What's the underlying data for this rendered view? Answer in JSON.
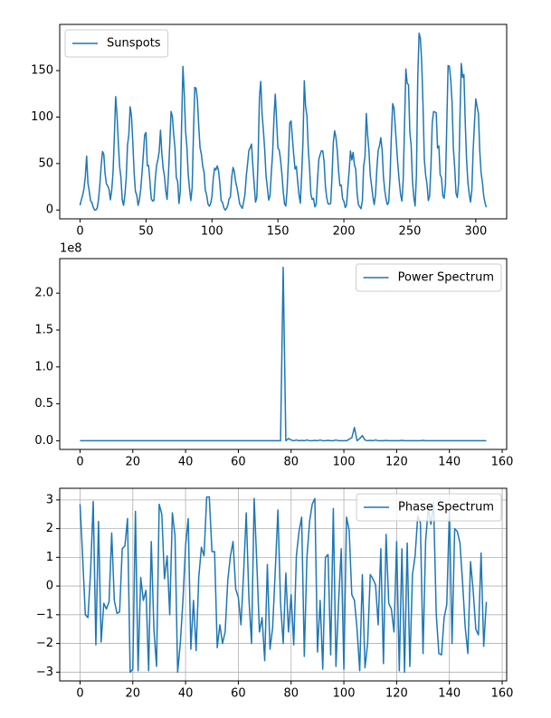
{
  "chart_data": [
    {
      "type": "line",
      "legend": "upper left",
      "grid": false,
      "series": [
        {
          "name": "Sunspots",
          "color": "#1f77b4",
          "values": [
            5,
            11,
            16,
            23,
            36,
            58,
            29,
            20,
            10,
            8,
            3,
            0,
            0,
            2,
            11,
            27,
            47,
            63,
            60,
            39,
            28,
            26,
            22,
            11,
            21,
            40,
            78,
            122,
            103,
            73,
            47,
            35,
            11,
            5,
            16,
            34,
            70,
            81,
            111,
            101,
            73,
            40,
            20,
            16,
            5,
            11,
            22,
            40,
            60,
            80.9,
            83.4,
            47.7,
            47.8,
            30.7,
            12.2,
            9.6,
            10.2,
            32.4,
            47.6,
            54,
            62.9,
            85.9,
            61.2,
            45.1,
            36.4,
            20.9,
            11.4,
            37.8,
            69.8,
            106.1,
            100.8,
            81.6,
            66.5,
            34.8,
            30.6,
            7,
            19.8,
            92.5,
            154.4,
            125.9,
            84.8,
            68.1,
            38.5,
            22.8,
            10.2,
            24.1,
            82.9,
            132,
            130.9,
            118.1,
            89.9,
            66.6,
            60,
            46.9,
            41,
            21.3,
            16,
            6.4,
            4.1,
            6.8,
            14.5,
            34,
            45,
            43.1,
            47.5,
            42.2,
            28.1,
            10.1,
            8.1,
            2.5,
            0,
            1.4,
            5,
            12.2,
            13.9,
            35.4,
            45.8,
            41.1,
            30.1,
            23.9,
            15.6,
            6.6,
            4,
            1.8,
            8.5,
            16.6,
            36.3,
            49.6,
            64.2,
            67,
            70.9,
            47.8,
            27.5,
            8.5,
            13.2,
            56.9,
            121.5,
            138.3,
            103.2,
            85.7,
            64.6,
            36.7,
            24.2,
            10.7,
            15,
            40.1,
            61.5,
            98.5,
            124.7,
            96.3,
            66.6,
            64.5,
            54.1,
            39,
            20.6,
            6.7,
            4.3,
            22.7,
            54.8,
            93.8,
            95.8,
            77.2,
            59.1,
            44,
            47,
            30.5,
            16.3,
            7.3,
            37.6,
            74,
            139,
            111.2,
            101.6,
            66.2,
            44.7,
            17,
            11.3,
            12.4,
            3.4,
            6,
            32.3,
            54.3,
            59.7,
            63.7,
            63.5,
            52.2,
            25.4,
            13.1,
            6.8,
            6.3,
            7.1,
            35.6,
            73,
            85.1,
            78,
            64,
            41.8,
            26.2,
            26.7,
            12.1,
            9.5,
            2.7,
            5,
            24.4,
            42,
            63.5,
            53.8,
            62,
            48.5,
            43.9,
            18.6,
            5.7,
            3.6,
            1.4,
            9.6,
            47.4,
            57.1,
            103.9,
            80.6,
            63.6,
            37.6,
            26.1,
            14.2,
            5.8,
            16.7,
            44.3,
            63.9,
            69,
            77.8,
            64.9,
            35.7,
            21.2,
            11.1,
            5.7,
            8.7,
            36.1,
            79.7,
            114.4,
            109.6,
            88.8,
            67.8,
            47.5,
            30.6,
            16.3,
            9.6,
            33.2,
            92.6,
            151.6,
            136.3,
            134.7,
            83.9,
            69.4,
            31.5,
            13.9,
            4.4,
            38,
            141.7,
            190.2,
            184.8,
            159,
            112.3,
            53.9,
            37.6,
            27.9,
            10.2,
            15.1,
            47,
            93.8,
            105.9,
            105.5,
            104.5,
            66.6,
            68.9,
            38,
            34.5,
            15.5,
            12.6,
            27.5,
            92.5,
            155.4,
            154.6,
            140.4,
            115.9,
            66.6,
            45.9,
            17.9,
            13.4,
            29.4,
            100.2,
            157.6,
            142.6,
            145.7,
            94.3,
            54.6,
            29.9,
            17.5,
            8.6,
            21.5,
            64.3,
            93.3,
            119.6,
            111,
            104,
            63.7,
            40.4,
            29.8,
            15.2,
            7.5,
            2.9
          ]
        }
      ],
      "xlim": [
        -15.4,
        323.4
      ],
      "xticks": [
        0,
        50,
        100,
        150,
        200,
        250,
        300
      ],
      "ylim": [
        -9.51,
        199.7
      ],
      "yticks": [
        0,
        50,
        100,
        150
      ]
    },
    {
      "type": "line",
      "legend": "upper right",
      "grid": false,
      "y_offset_label": "1e8",
      "series": [
        {
          "name": "Power Spectrum",
          "color": "#1f77b4",
          "values": [
            0,
            0,
            0,
            0,
            0,
            0,
            0,
            0,
            0,
            0,
            0,
            0,
            0,
            0,
            0,
            0,
            0,
            0,
            0,
            0,
            0,
            0,
            0,
            0,
            0,
            0,
            0,
            0,
            0,
            0,
            0,
            0,
            0,
            0,
            0,
            0,
            0,
            0,
            0,
            0,
            0,
            0,
            0,
            0,
            0,
            0,
            0,
            0,
            0,
            0,
            0,
            0,
            0,
            0,
            0,
            0,
            0,
            0,
            0,
            0,
            0,
            0,
            0,
            0,
            0,
            0,
            0,
            0,
            0,
            0,
            0,
            0,
            0,
            0,
            0,
            0,
            0,
            2.35,
            0,
            0.03,
            0.01,
            0,
            0.01,
            0,
            0.005,
            0,
            0.01,
            0,
            0,
            0.005,
            0,
            0.01,
            0,
            0,
            0.005,
            0,
            0,
            0.01,
            0,
            0,
            0,
            0,
            0.02,
            0.04,
            0.18,
            0,
            0.03,
            0.07,
            0.01,
            0,
            0.005,
            0,
            0.01,
            0,
            0,
            0,
            0.005,
            0,
            0,
            0,
            0,
            0,
            0.005,
            0,
            0,
            0,
            0,
            0,
            0,
            0,
            0.005,
            0,
            0,
            0,
            0,
            0,
            0,
            0,
            0,
            0,
            0,
            0,
            0,
            0,
            0,
            0,
            0,
            0,
            0,
            0,
            0,
            0,
            0,
            0,
            0
          ]
        }
      ],
      "xlim": [
        -7.7,
        161.7
      ],
      "xticks": [
        0,
        20,
        40,
        60,
        80,
        100,
        120,
        140,
        160
      ],
      "ylim": [
        -0.1175,
        2.4675
      ],
      "yticks": [
        {
          "value": 0,
          "label": "0.0"
        },
        0.5,
        {
          "value": 1,
          "label": "1.0"
        },
        1.5,
        {
          "value": 2,
          "label": "2.0"
        }
      ]
    },
    {
      "type": "line",
      "legend": "upper right",
      "grid": true,
      "series": [
        {
          "name": "Phase Spectrum",
          "color": "#1f77b4",
          "values": [
            2.85,
            1.0,
            -1.0,
            -1.1,
            0.5,
            2.95,
            -2.05,
            2.25,
            -1.95,
            -0.6,
            -0.8,
            -0.55,
            1.85,
            -0.5,
            -0.95,
            -0.9,
            1.3,
            1.4,
            2.35,
            -3.0,
            -2.9,
            2.6,
            -2.95,
            0.3,
            -0.5,
            -0.15,
            -2.95,
            1.55,
            -1.5,
            -2.8,
            2.85,
            2.5,
            0.25,
            1.05,
            -1.0,
            2.55,
            1.75,
            -3.0,
            -2.0,
            -0.5,
            1.4,
            2.35,
            -2.2,
            -0.5,
            -2.25,
            0.3,
            1.35,
            1.05,
            3.1,
            3.1,
            1.2,
            1.2,
            -2.15,
            -1.35,
            -2.0,
            -1.6,
            0.2,
            1.05,
            1.55,
            -0.1,
            -0.4,
            -1.35,
            0.45,
            2.55,
            -0.4,
            -2.0,
            3.05,
            0.8,
            -1.6,
            -1.1,
            -2.6,
            0.75,
            -2.2,
            -1.45,
            0.55,
            2.65,
            -0.6,
            -2.0,
            0.45,
            -1.6,
            -0.3,
            -2.05,
            1.05,
            1.9,
            2.4,
            -2.45,
            1.0,
            2.25,
            2.85,
            3.05,
            -2.3,
            -0.5,
            -2.9,
            1.0,
            1.1,
            -2.4,
            2.7,
            -2.8,
            -0.55,
            1.3,
            -2.9,
            2.4,
            1.95,
            -0.3,
            -0.5,
            -1.5,
            -2.95,
            0.4,
            -2.85,
            -2.0,
            0.4,
            0.25,
            0.05,
            -1.35,
            1.3,
            -2.7,
            1.8,
            -0.6,
            -0.8,
            -1.6,
            1.55,
            -2.95,
            1.3,
            -3.0,
            1.5,
            -2.8,
            0.4,
            1.05,
            2.45,
            2.2,
            -2.35,
            1.6,
            2.7,
            2.15,
            2.9,
            -0.95,
            -2.35,
            -2.4,
            -1.1,
            -0.65,
            2.65,
            -2.0,
            2.0,
            1.9,
            1.5,
            0.1,
            -1.45,
            -2.35,
            0.85,
            -0.15,
            -1.5,
            -1.7,
            1.15,
            -2.1,
            -0.55
          ]
        }
      ],
      "xlim": [
        -7.7,
        161.7
      ],
      "xticks": [
        0,
        20,
        40,
        60,
        80,
        100,
        120,
        140,
        160
      ],
      "ylim": [
        -3.305,
        3.405
      ],
      "yticks": [
        {
          "value": -3,
          "label": "−3"
        },
        {
          "value": -2,
          "label": "−2"
        },
        {
          "value": -1,
          "label": "−1"
        },
        0,
        1,
        2,
        3
      ]
    }
  ]
}
